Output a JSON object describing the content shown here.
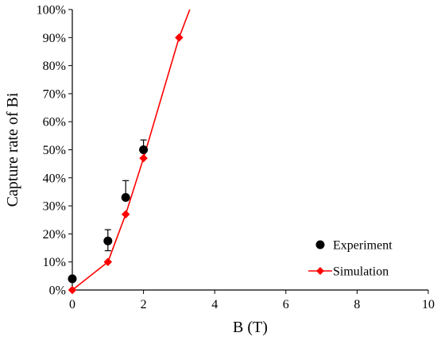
{
  "chart_data": {
    "type": "scatter",
    "title": "",
    "xlabel": "B (T)",
    "ylabel": "Capture rate of Bi",
    "xlim": [
      0,
      10
    ],
    "ylim": [
      0,
      100
    ],
    "x_ticks": [
      0,
      2,
      4,
      6,
      8,
      10
    ],
    "x_tick_labels": [
      "0",
      "2",
      "4",
      "6",
      "8",
      "10"
    ],
    "y_ticks": [
      0,
      10,
      20,
      30,
      40,
      50,
      60,
      70,
      80,
      90,
      100
    ],
    "y_tick_labels": [
      "0%",
      "10%",
      "20%",
      "30%",
      "40%",
      "50%",
      "60%",
      "70%",
      "80%",
      "90%",
      "100%"
    ],
    "grid": false,
    "legend_position": "bottom-right",
    "series": [
      {
        "name": "Experiment",
        "style": "markers",
        "marker": "circle",
        "color": "#000000",
        "x": [
          0,
          1,
          1.5,
          2
        ],
        "y": [
          4,
          17.5,
          33,
          50
        ],
        "error_plus": [
          0,
          4,
          6,
          3.5
        ],
        "error_minus": [
          0,
          3.5,
          0,
          0
        ]
      },
      {
        "name": "Simulation",
        "style": "line-markers",
        "marker": "diamond",
        "color": "#ff0000",
        "x": [
          0,
          1,
          1.5,
          2,
          3,
          3.3
        ],
        "y": [
          0,
          10,
          27,
          47,
          90,
          100
        ],
        "marked_x": [
          0,
          1,
          1.5,
          2,
          3
        ]
      }
    ]
  }
}
